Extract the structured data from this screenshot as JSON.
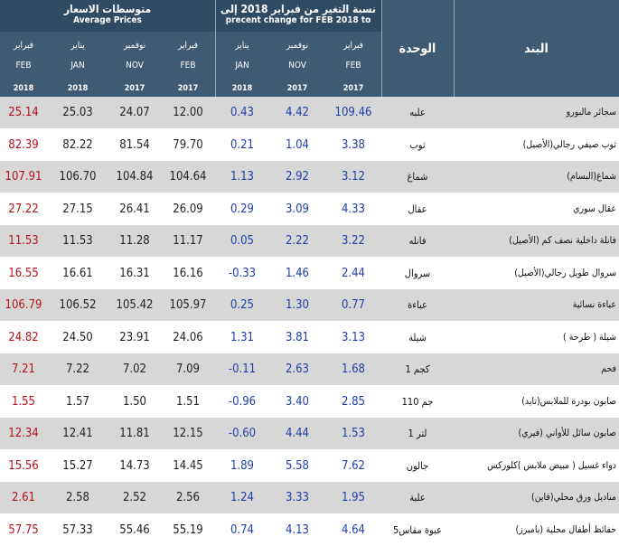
{
  "header": {
    "avg_ar": "متوسطات الاسعار",
    "avg_en": "Average Prices",
    "pct_ar": "نسبة التغير من فبراير 2018 إلى",
    "pct_en": "precent change for FEB 2018 to",
    "unit": "الوحدة",
    "item": "البند",
    "cols": [
      {
        "ar": "فبراير",
        "en": "FEB",
        "year": "2018"
      },
      {
        "ar": "يناير",
        "en": "JAN",
        "year": "2018"
      },
      {
        "ar": "نوفمبر",
        "en": "NOV",
        "year": "2017"
      },
      {
        "ar": "فبراير",
        "en": "FEB",
        "year": "2017"
      },
      {
        "ar": "يناير",
        "en": "JAN",
        "year": "2018"
      },
      {
        "ar": "نوفمبر",
        "en": "NOV",
        "year": "2017"
      },
      {
        "ar": "فبراير",
        "en": "FEB",
        "year": "2017"
      }
    ]
  },
  "rows": [
    {
      "v": [
        "25.14",
        "25.03",
        "24.07",
        "12.00",
        "0.43",
        "4.42",
        "109.46"
      ],
      "unit": "علبه",
      "item": "سجائر مالبورو"
    },
    {
      "v": [
        "82.39",
        "82.22",
        "81.54",
        "79.70",
        "0.21",
        "1.04",
        "3.38"
      ],
      "unit": "ثوب",
      "item": "ثوب صيفي رجالي(الأصيل)"
    },
    {
      "v": [
        "107.91",
        "106.70",
        "104.84",
        "104.64",
        "1.13",
        "2.92",
        "3.12"
      ],
      "unit": "شماغ",
      "item": "شماغ(البسام)"
    },
    {
      "v": [
        "27.22",
        "27.15",
        "26.41",
        "26.09",
        "0.29",
        "3.09",
        "4.33"
      ],
      "unit": "عقال",
      "item": "عقال سوري"
    },
    {
      "v": [
        "11.53",
        "11.53",
        "11.28",
        "11.17",
        "0.05",
        "2.22",
        "3.22"
      ],
      "unit": "فانله",
      "item": "فانلة داخلية نصف كم (الأصيل)"
    },
    {
      "v": [
        "16.55",
        "16.61",
        "16.31",
        "16.16",
        "-0.33",
        "1.46",
        "2.44"
      ],
      "unit": "سروال",
      "item": "سروال طويل رجالي(الأصيل)"
    },
    {
      "v": [
        "106.79",
        "106.52",
        "105.42",
        "105.97",
        "0.25",
        "1.30",
        "0.77"
      ],
      "unit": "عباءة",
      "item": "عباءة نسائية"
    },
    {
      "v": [
        "24.82",
        "24.50",
        "23.91",
        "24.06",
        "1.31",
        "3.81",
        "3.13"
      ],
      "unit": "شيلة",
      "item": "شيلة ( طرحة )"
    },
    {
      "v": [
        "7.21",
        "7.22",
        "7.02",
        "7.09",
        "-0.11",
        "2.63",
        "1.68"
      ],
      "unit": "1 كجم",
      "item": "فحم"
    },
    {
      "v": [
        "1.55",
        "1.57",
        "1.50",
        "1.51",
        "-0.96",
        "3.40",
        "2.85"
      ],
      "unit": "110 جم",
      "item": "صابون بودرة للملابس(تايد)"
    },
    {
      "v": [
        "12.34",
        "12.41",
        "11.81",
        "12.15",
        "-0.60",
        "4.44",
        "1.53"
      ],
      "unit": "1 لتر",
      "item": "صابون سائل للأواني (فيري)"
    },
    {
      "v": [
        "15.56",
        "15.27",
        "14.73",
        "14.45",
        "1.89",
        "5.58",
        "7.62"
      ],
      "unit": "جالون",
      "item": "دواء غسيل ( مبيض ملابس )كلوركس"
    },
    {
      "v": [
        "2.61",
        "2.58",
        "2.52",
        "2.56",
        "1.24",
        "3.33",
        "1.95"
      ],
      "unit": "علبة",
      "item": "مناديل ورق محلي(فاين)"
    },
    {
      "v": [
        "57.75",
        "57.33",
        "55.46",
        "55.19",
        "0.74",
        "4.13",
        "4.64"
      ],
      "unit": "عبوة مقاس5",
      "item": "حفائظ أطفال محلية (بامبرز)"
    }
  ]
}
